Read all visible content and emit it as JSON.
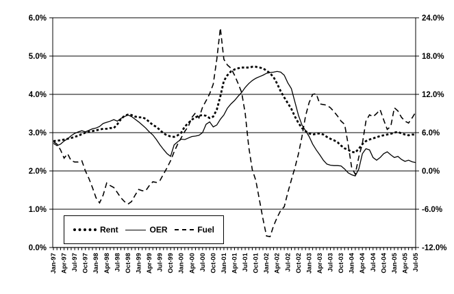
{
  "chart_data": {
    "type": "line",
    "title": "",
    "xlabel": "",
    "ylabel_left": "",
    "ylabel_right": "",
    "grid": true,
    "legend_position": "inside-bottom-left",
    "x_tick_labels": [
      "Jan-97",
      "Apr-97",
      "Jul-97",
      "Oct-97",
      "Jan-98",
      "Apr-98",
      "Jul-98",
      "Oct-98",
      "Jan-99",
      "Apr-99",
      "Jul-99",
      "Oct-99",
      "Jan-00",
      "Apr-00",
      "Jul-00",
      "Oct-00",
      "Jan-01",
      "Apr-01",
      "Jul-01",
      "Oct-01",
      "Jan-02",
      "Apr-02",
      "Jul-02",
      "Oct-02",
      "Jan-03",
      "Apr-03",
      "Jul-03",
      "Oct-03",
      "Jan-04",
      "Apr-04",
      "Jul-04",
      "Oct-04",
      "Jan-05",
      "Apr-05",
      "Jul-05"
    ],
    "months_per_label": 3,
    "left_axis": {
      "min": 0,
      "max": 6,
      "tick_labels": [
        "6.0%",
        "5.0%",
        "4.0%",
        "3.0%",
        "2.0%",
        "1.0%",
        "0.0%"
      ]
    },
    "right_axis": {
      "min": -12,
      "max": 24,
      "tick_labels": [
        "24.0%",
        "18.0%",
        "12.0%",
        "6.0%",
        "0.0%",
        "-6.0%",
        "-12.0%"
      ]
    },
    "series": [
      {
        "name": "Rent",
        "axis": "left",
        "style": "dotted",
        "values": [
          2.78,
          2.79,
          2.8,
          2.82,
          2.84,
          2.86,
          2.89,
          2.92,
          2.96,
          3.0,
          3.02,
          3.04,
          3.06,
          3.08,
          3.1,
          3.1,
          3.12,
          3.12,
          3.22,
          3.35,
          3.44,
          3.47,
          3.46,
          3.42,
          3.4,
          3.4,
          3.36,
          3.28,
          3.2,
          3.15,
          3.07,
          2.98,
          2.93,
          2.9,
          2.89,
          2.93,
          3.0,
          3.16,
          3.25,
          3.34,
          3.4,
          3.44,
          3.46,
          3.44,
          3.38,
          3.42,
          3.6,
          3.95,
          4.35,
          4.5,
          4.6,
          4.65,
          4.68,
          4.7,
          4.7,
          4.7,
          4.72,
          4.72,
          4.7,
          4.68,
          4.62,
          4.55,
          4.45,
          4.28,
          4.08,
          3.92,
          3.77,
          3.62,
          3.42,
          3.25,
          3.12,
          3.04,
          2.98,
          2.95,
          2.97,
          2.98,
          2.95,
          2.89,
          2.84,
          2.8,
          2.75,
          2.66,
          2.59,
          2.55,
          2.5,
          2.48,
          2.58,
          2.7,
          2.78,
          2.82,
          2.85,
          2.88,
          2.91,
          2.93,
          2.95,
          2.97,
          3.0,
          3.02,
          2.98,
          2.95,
          2.93,
          2.95,
          2.95
        ]
      },
      {
        "name": "OER",
        "axis": "left",
        "style": "solid",
        "values": [
          2.72,
          2.66,
          2.7,
          2.78,
          2.84,
          2.92,
          2.98,
          3.02,
          3.05,
          3.02,
          3.06,
          3.1,
          3.12,
          3.16,
          3.24,
          3.27,
          3.3,
          3.34,
          3.3,
          3.37,
          3.42,
          3.46,
          3.42,
          3.35,
          3.28,
          3.2,
          3.12,
          3.02,
          2.94,
          2.82,
          2.68,
          2.56,
          2.45,
          2.38,
          2.68,
          2.76,
          2.83,
          2.82,
          2.86,
          2.9,
          2.91,
          2.93,
          3.0,
          3.22,
          3.28,
          3.15,
          3.2,
          3.35,
          3.46,
          3.64,
          3.75,
          3.84,
          3.95,
          4.05,
          4.18,
          4.28,
          4.36,
          4.42,
          4.46,
          4.5,
          4.55,
          4.57,
          4.58,
          4.6,
          4.58,
          4.5,
          4.3,
          4.15,
          3.8,
          3.45,
          3.2,
          3.05,
          2.9,
          2.7,
          2.55,
          2.42,
          2.28,
          2.18,
          2.15,
          2.14,
          2.14,
          2.13,
          2.05,
          1.95,
          1.9,
          1.87,
          2.05,
          2.45,
          2.58,
          2.55,
          2.35,
          2.28,
          2.35,
          2.45,
          2.5,
          2.42,
          2.35,
          2.38,
          2.3,
          2.25,
          2.28,
          2.24,
          2.22
        ]
      },
      {
        "name": "Fuel",
        "axis": "right",
        "style": "dashed",
        "values": [
          4.6,
          4.2,
          3.3,
          2.0,
          2.7,
          1.6,
          1.4,
          1.4,
          1.6,
          0.0,
          -1.2,
          -2.6,
          -4.2,
          -5.0,
          -3.8,
          -1.9,
          -2.3,
          -2.6,
          -3.4,
          -4.2,
          -4.8,
          -5.2,
          -4.8,
          -3.8,
          -2.9,
          -3.1,
          -3.1,
          -2.3,
          -1.7,
          -1.8,
          -1.5,
          -0.5,
          0.5,
          1.6,
          3.0,
          4.2,
          5.2,
          6.2,
          7.0,
          8.4,
          9.1,
          8.3,
          10.0,
          11.0,
          12.1,
          13.6,
          17.5,
          22.4,
          17.5,
          16.6,
          16.1,
          15.0,
          13.7,
          12.3,
          9.0,
          3.8,
          0.2,
          -1.5,
          -4.5,
          -7.5,
          -10.2,
          -10.3,
          -8.6,
          -7.3,
          -6.2,
          -5.6,
          -3.4,
          -1.4,
          0.5,
          2.7,
          5.4,
          8.6,
          10.7,
          12.0,
          12.1,
          10.5,
          10.4,
          10.3,
          9.9,
          9.3,
          8.6,
          7.8,
          7.3,
          4.1,
          0.5,
          -0.5,
          2.2,
          4.3,
          7.8,
          8.8,
          8.5,
          9.0,
          9.6,
          8.0,
          6.5,
          7.0,
          9.9,
          9.4,
          8.4,
          7.8,
          7.5,
          8.3,
          9.2
        ]
      }
    ]
  },
  "legend": {
    "items": [
      {
        "label": "Rent"
      },
      {
        "label": "OER"
      },
      {
        "label": "Fuel"
      }
    ]
  },
  "colors": {
    "line": "#000000",
    "background": "#ffffff"
  }
}
